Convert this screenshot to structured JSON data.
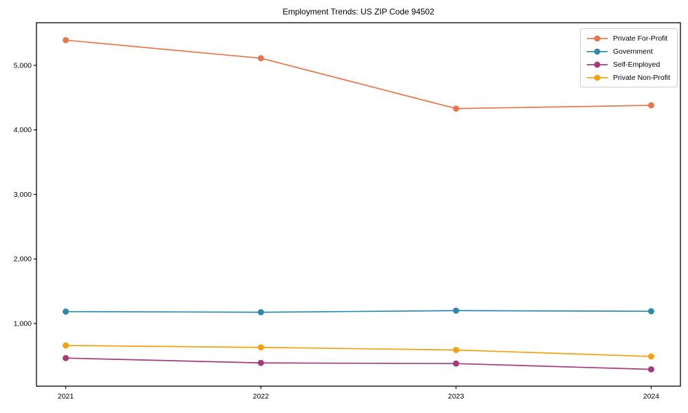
{
  "figure": {
    "background": "#ffffff",
    "frame_color": "#000000",
    "text_color": "#000000",
    "legend_border_color": "#cccccc"
  },
  "chart_data": {
    "type": "line",
    "title": "Employment Trends: US ZIP Code 94502",
    "xlabel": "",
    "ylabel": "",
    "grid": false,
    "legend_position": "upper right",
    "marker": "circle",
    "x": [
      2021,
      2022,
      2023,
      2024
    ],
    "categories": [
      "2021",
      "2022",
      "2023",
      "2024"
    ],
    "series": [
      {
        "name": "Private For-Profit",
        "color": "#E8764B",
        "values": [
          5390,
          5110,
          4330,
          4380
        ]
      },
      {
        "name": "Government",
        "color": "#2E8BA8",
        "values": [
          1185,
          1175,
          1200,
          1190
        ]
      },
      {
        "name": "Self-Employed",
        "color": "#A43A7B",
        "values": [
          465,
          390,
          380,
          290
        ]
      },
      {
        "name": "Private Non-Profit",
        "color": "#F5A010",
        "values": [
          660,
          630,
          590,
          490
        ]
      }
    ],
    "xlim": [
      2020.85,
      2024.15
    ],
    "ylim": [
      30,
      5660
    ],
    "yticks": [
      1000,
      2000,
      3000,
      4000,
      5000
    ],
    "ytick_labels": [
      "1,000",
      "2,000",
      "3,000",
      "4,000",
      "5,000"
    ]
  }
}
